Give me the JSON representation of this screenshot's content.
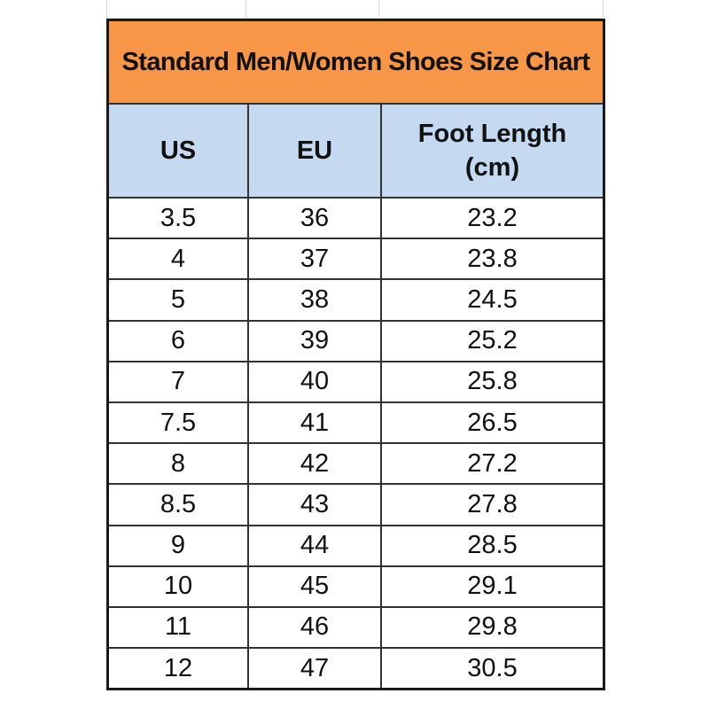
{
  "title": "Standard Men/Women Shoes Size Chart",
  "colors": {
    "title_bg": "#f79646",
    "header_bg": "#c5d9f1"
  },
  "headers": [
    "US",
    "EU",
    "Foot Length",
    "(cm)"
  ],
  "rows": [
    [
      "3.5",
      "36",
      "23.2"
    ],
    [
      "4",
      "37",
      "23.8"
    ],
    [
      "5",
      "38",
      "24.5"
    ],
    [
      "6",
      "39",
      "25.2"
    ],
    [
      "7",
      "40",
      "25.8"
    ],
    [
      "7.5",
      "41",
      "26.5"
    ],
    [
      "8",
      "42",
      "27.2"
    ],
    [
      "8.5",
      "43",
      "27.8"
    ],
    [
      "9",
      "44",
      "28.5"
    ],
    [
      "10",
      "45",
      "29.1"
    ],
    [
      "11",
      "46",
      "29.8"
    ],
    [
      "12",
      "47",
      "30.5"
    ]
  ]
}
